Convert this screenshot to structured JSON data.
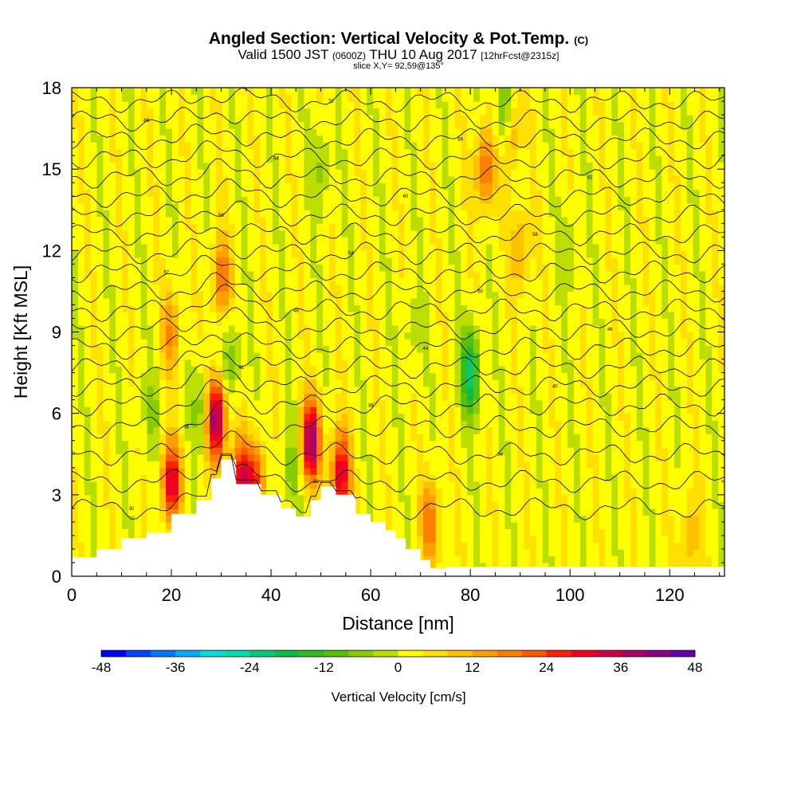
{
  "header": {
    "title": "Angled Section: Vertical Velocity & Pot.Temp.",
    "title_tag": "(C)",
    "valid_a": "Valid 1500 JST",
    "valid_b": "(0600Z)",
    "valid_c": "THU 10 Aug 2017",
    "valid_d": "[12hrFcst@2315z]",
    "slice": "slice X,Y= 92,59@135°"
  },
  "chart_data": {
    "type": "heatmap",
    "xlabel": "Distance [nm]",
    "ylabel": "Height [Kft MSL]",
    "xlim": [
      0,
      131
    ],
    "ylim": [
      0,
      18
    ],
    "x_ticks": [
      0,
      20,
      40,
      60,
      80,
      100,
      120
    ],
    "y_ticks": [
      0,
      3,
      6,
      9,
      12,
      15,
      18
    ],
    "colorbar": {
      "label": "Vertical Velocity [cm/s]",
      "min": -48,
      "max": 48,
      "step": 4,
      "ticks": [
        -48,
        -36,
        -24,
        -12,
        0,
        12,
        24,
        36,
        48
      ],
      "colors": [
        "#0000ff",
        "#0044ff",
        "#0077ff",
        "#00aaff",
        "#00dddd",
        "#00ddaa",
        "#00cc77",
        "#11bb44",
        "#33bb22",
        "#55c011",
        "#88cc00",
        "#bbdd00",
        "#ffff00",
        "#ffe000",
        "#ffc000",
        "#ffa000",
        "#ff8000",
        "#ff5a00",
        "#ff2000",
        "#ee0022",
        "#cc0044",
        "#aa0066",
        "#880088",
        "#6600aa"
      ]
    },
    "terrain_top_kft": [
      [
        0,
        0.7
      ],
      [
        5,
        1.0
      ],
      [
        10,
        1.4
      ],
      [
        15,
        1.6
      ],
      [
        20,
        2.3
      ],
      [
        25,
        2.8
      ],
      [
        28,
        3.6
      ],
      [
        30,
        4.3
      ],
      [
        33,
        3.4
      ],
      [
        38,
        3.0
      ],
      [
        42,
        2.5
      ],
      [
        45,
        2.2
      ],
      [
        48,
        2.8
      ],
      [
        50,
        3.3
      ],
      [
        53,
        3.0
      ],
      [
        57,
        2.3
      ],
      [
        60,
        2.0
      ],
      [
        63,
        1.7
      ],
      [
        65,
        1.4
      ],
      [
        67,
        1.0
      ],
      [
        70,
        0.6
      ],
      [
        72,
        0.3
      ],
      [
        75,
        0.35
      ],
      [
        131,
        0.35
      ]
    ],
    "w_cells": [
      {
        "x": 29,
        "z": 5.8,
        "w": 40
      },
      {
        "x": 30,
        "z": 11,
        "w": 18
      },
      {
        "x": 34,
        "z": 3.5,
        "w": 30
      },
      {
        "x": 20,
        "z": 3.5,
        "w": 30
      },
      {
        "x": 48,
        "z": 5.0,
        "w": 38
      },
      {
        "x": 54,
        "z": 3.8,
        "w": 32
      },
      {
        "x": 37,
        "z": 3.5,
        "w": 22
      },
      {
        "x": 20,
        "z": 9.0,
        "w": 14
      },
      {
        "x": 72,
        "z": 2.0,
        "w": 18
      },
      {
        "x": 83,
        "z": 15,
        "w": 20
      },
      {
        "x": 88,
        "z": 16.5,
        "w": 18
      },
      {
        "x": 90,
        "z": 12,
        "w": 12
      },
      {
        "x": 80,
        "z": 7.5,
        "w": -24
      },
      {
        "x": 87,
        "z": 17,
        "w": -18
      },
      {
        "x": 26,
        "z": 6.2,
        "w": -10
      },
      {
        "x": 32,
        "z": 8.0,
        "w": -10
      },
      {
        "x": 50,
        "z": 15,
        "w": -8
      },
      {
        "x": 44,
        "z": 4.0,
        "w": -8
      },
      {
        "x": 16,
        "z": 6,
        "w": -6
      },
      {
        "x": 100,
        "z": 12,
        "w": -6
      },
      {
        "x": 124,
        "z": 1.4,
        "w": 10
      },
      {
        "x": 68,
        "z": 9,
        "w": -5
      }
    ],
    "theta_levels": [
      {
        "z": 2.5,
        "label": "30"
      },
      {
        "z": 3.5,
        "label": "32"
      },
      {
        "z": 4.5,
        "label": "34"
      },
      {
        "z": 5.5,
        "label": "36"
      },
      {
        "z": 6.3,
        "label": "38"
      },
      {
        "z": 7.0,
        "label": "40"
      },
      {
        "z": 7.7,
        "label": "42"
      },
      {
        "z": 8.4,
        "label": "44"
      },
      {
        "z": 9.1,
        "label": "46"
      },
      {
        "z": 9.8,
        "label": "48"
      },
      {
        "z": 10.5,
        "label": "50"
      },
      {
        "z": 11.2,
        "label": "52"
      },
      {
        "z": 11.9,
        "label": "54"
      },
      {
        "z": 12.6,
        "label": "56"
      },
      {
        "z": 13.3,
        "label": "58"
      },
      {
        "z": 14.0,
        "label": "60"
      },
      {
        "z": 14.7,
        "label": "62"
      },
      {
        "z": 15.4,
        "label": "64"
      },
      {
        "z": 16.1,
        "label": "66"
      },
      {
        "z": 16.8,
        "label": "68"
      },
      {
        "z": 17.5,
        "label": "70"
      }
    ]
  }
}
